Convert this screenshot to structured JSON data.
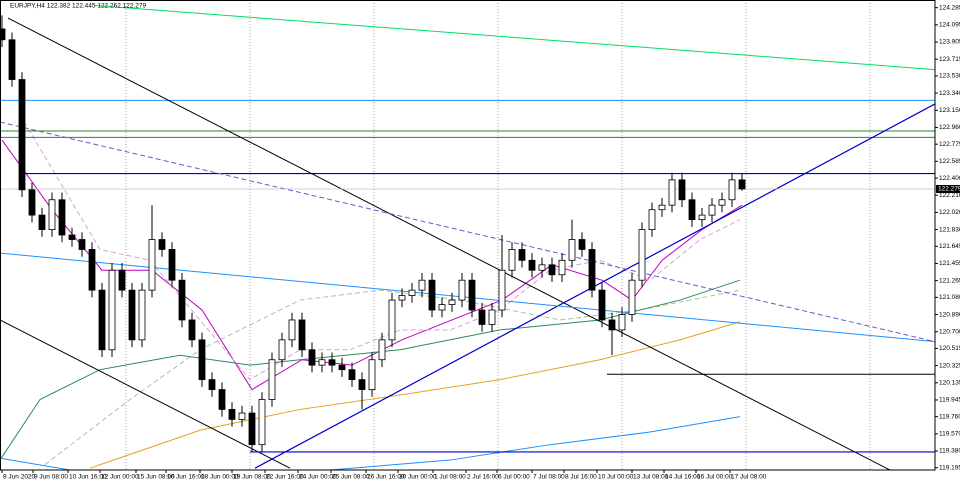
{
  "chart_data": {
    "type": "candlestick",
    "title": "EURJPY,H4 122.382 122.445 122.262 122.279",
    "xlim": [
      -0.2,
      93.3
    ],
    "ylim": [
      119.17,
      124.37
    ],
    "xticks": [
      {
        "value": 0,
        "label": "8 Jun 2020"
      },
      {
        "value": 3.1,
        "label": "9 Jun 08:00"
      },
      {
        "value": 6.6,
        "label": "10 Jun 16:00"
      },
      {
        "value": 9.8,
        "label": "12 Jun 00:00"
      },
      {
        "value": 13.4,
        "label": "15 Jun 08:00"
      },
      {
        "value": 16.4,
        "label": "16 Jun 16:00"
      },
      {
        "value": 19.8,
        "label": "18 Jun 00:00"
      },
      {
        "value": 23,
        "label": "19 Jun 08:00"
      },
      {
        "value": 26.3,
        "label": "22 Jun 16:00"
      },
      {
        "value": 29.6,
        "label": "24 Jun 00:00"
      },
      {
        "value": 32.9,
        "label": "25 Jun 08:00"
      },
      {
        "value": 36.4,
        "label": "26 Jun 16:00"
      },
      {
        "value": 39.6,
        "label": "30 Jun 00:00"
      },
      {
        "value": 43.1,
        "label": "1 Jul 08:00"
      },
      {
        "value": 46.4,
        "label": "2 Jul 16:00"
      },
      {
        "value": 49.5,
        "label": "6 Jul 00:00"
      },
      {
        "value": 53,
        "label": "7 Jul 08:00"
      },
      {
        "value": 56.2,
        "label": "8 Jul 16:00"
      },
      {
        "value": 59.5,
        "label": "10 Jul 00:00"
      },
      {
        "value": 63,
        "label": "13 Jul 08:00"
      },
      {
        "value": 66.2,
        "label": "14 Jul 16:00"
      },
      {
        "value": 69.4,
        "label": "16 Jul 00:00"
      },
      {
        "value": 72.8,
        "label": "17 Jul 08:00"
      }
    ],
    "xgrid": [
      12.4,
      24.8,
      37.2,
      49.6,
      62,
      74.4,
      86.8
    ],
    "yticks": [
      124.285,
      124.095,
      123.905,
      123.715,
      {
        "value": 123.53,
        "label": "123.530"
      },
      {
        "value": 123.34,
        "label": "123.340"
      },
      {
        "value": 123.15,
        "label": "123.150"
      },
      {
        "value": 122.96,
        "label": "122.960"
      },
      122.775,
      122.585,
      {
        "value": 122.4,
        "label": "122.400"
      },
      {
        "value": 122.21,
        "label": "122.210"
      },
      {
        "value": 122.02,
        "label": "122.020"
      },
      {
        "value": 121.83,
        "label": "121.830"
      },
      121.645,
      121.455,
      121.265,
      {
        "value": 121.08,
        "label": "121.080"
      },
      {
        "value": 120.89,
        "label": "120.890"
      },
      {
        "value": 120.7,
        "label": "120.700"
      },
      120.515,
      120.325,
      120.135,
      119.945,
      {
        "value": 119.76,
        "label": "119.760"
      },
      {
        "value": 119.57,
        "label": "119.570"
      },
      {
        "value": 119.38,
        "label": "119.380"
      },
      119.195
    ],
    "last_price": 122.279,
    "open": [
      124.05,
      123.93,
      123.49,
      122.27,
      121.99,
      121.83,
      122.16,
      121.77,
      121.72,
      121.61,
      121.16,
      120.5,
      121.38,
      121.16,
      120.61,
      121.16,
      121.72,
      121.61,
      121.27,
      120.83,
      120.61,
      120.17,
      120.06,
      119.84,
      119.73,
      119.8,
      119.45,
      119.95,
      120.39,
      120.61,
      120.83,
      120.5,
      120.33,
      120.39,
      120.33,
      120.28,
      120.17,
      120.06,
      120.39,
      120.61,
      121.05,
      121.1,
      121.16,
      121.27,
      120.94,
      121.0,
      121.05,
      121.27,
      120.94,
      120.78,
      120.94,
      121.38,
      121.61,
      121.49,
      121.38,
      121.44,
      121.33,
      121.49,
      121.72,
      121.61,
      121.16,
      120.83,
      120.72,
      120.89,
      121.27,
      121.83,
      122.05,
      122.1,
      122.38,
      122.16,
      121.94,
      121.99,
      122.1,
      122.16,
      122.38
    ],
    "high": [
      124.2,
      124.01,
      123.57,
      122.35,
      122.07,
      122.24,
      122.24,
      121.85,
      121.8,
      121.69,
      121.24,
      121.46,
      121.46,
      121.24,
      121.24,
      122.1,
      121.8,
      121.69,
      121.35,
      120.91,
      120.69,
      120.25,
      120.14,
      119.92,
      119.88,
      119.88,
      120.03,
      120.47,
      120.69,
      120.91,
      120.91,
      120.58,
      120.47,
      120.47,
      120.41,
      120.36,
      120.25,
      120.47,
      120.69,
      121.13,
      121.18,
      121.24,
      121.35,
      121.35,
      121.08,
      121.13,
      121.35,
      121.35,
      121.02,
      121.02,
      121.77,
      121.69,
      121.69,
      121.57,
      121.52,
      121.52,
      121.57,
      121.94,
      121.8,
      121.69,
      121.24,
      120.91,
      120.97,
      121.35,
      121.91,
      122.13,
      122.18,
      122.46,
      122.46,
      122.24,
      122.07,
      122.18,
      122.24,
      122.46,
      122.45
    ],
    "low": [
      123.85,
      123.41,
      122.19,
      121.91,
      121.75,
      121.75,
      121.69,
      121.64,
      121.53,
      121.08,
      120.42,
      120.42,
      121.08,
      120.53,
      120.53,
      121.08,
      121.53,
      121.19,
      120.75,
      120.53,
      120.09,
      119.98,
      119.76,
      119.65,
      119.65,
      119.37,
      119.37,
      119.87,
      120.31,
      120.53,
      120.42,
      120.25,
      120.25,
      120.25,
      120.2,
      120.09,
      119.84,
      119.98,
      120.31,
      120.53,
      120.97,
      121.02,
      121.08,
      120.86,
      120.86,
      120.92,
      120.97,
      120.86,
      120.7,
      120.7,
      120.86,
      121.3,
      121.41,
      121.3,
      121.3,
      121.25,
      121.25,
      121.41,
      121.53,
      121.08,
      120.75,
      120.44,
      120.64,
      120.81,
      121.19,
      121.75,
      121.97,
      122.02,
      122.08,
      121.86,
      121.86,
      121.91,
      122.02,
      122.08,
      122.26
    ],
    "close": [
      123.93,
      123.49,
      122.27,
      121.99,
      121.83,
      122.16,
      121.77,
      121.72,
      121.61,
      121.16,
      120.5,
      121.38,
      121.16,
      120.61,
      121.16,
      121.72,
      121.61,
      121.27,
      120.83,
      120.61,
      120.17,
      120.06,
      119.84,
      119.73,
      119.8,
      119.45,
      119.95,
      120.39,
      120.61,
      120.83,
      120.5,
      120.33,
      120.39,
      120.33,
      120.28,
      120.17,
      120.06,
      120.39,
      120.61,
      121.05,
      121.1,
      121.16,
      121.27,
      120.94,
      121.0,
      121.05,
      121.27,
      120.94,
      120.78,
      120.94,
      121.38,
      121.61,
      121.49,
      121.38,
      121.44,
      121.33,
      121.49,
      121.72,
      121.61,
      121.16,
      120.83,
      120.72,
      120.89,
      121.27,
      121.83,
      122.05,
      122.1,
      122.38,
      122.16,
      121.94,
      121.99,
      122.1,
      122.16,
      122.38,
      122.28
    ],
    "series": [
      {
        "color": "#c000c0",
        "x": [
          0,
          5,
          10,
          15,
          20,
          25,
          30,
          35,
          40,
          45,
          50,
          55,
          60,
          63,
          66,
          70,
          74
        ],
        "values": [
          122.82,
          122.05,
          121.38,
          121.38,
          120.94,
          120.06,
          120.39,
          120.33,
          120.61,
          120.83,
          121.05,
          121.44,
          121.27,
          121.05,
          121.49,
          121.83,
          122.1
        ]
      },
      {
        "color": "#d8a0d8",
        "dash": true,
        "x": [
          1.8,
          9.8,
          14.8,
          19.8,
          24.8,
          29.8,
          34.8,
          39.8,
          44.8,
          49.8,
          54.8,
          59.8,
          64.8,
          69.8,
          73.8
        ],
        "values": [
          123.1,
          121.61,
          121.49,
          120.83,
          120.17,
          120.5,
          120.5,
          120.72,
          120.72,
          120.94,
          121.38,
          121.49,
          121.27,
          121.72,
          121.94
        ]
      },
      {
        "color": "#a0c8a0",
        "dash": true,
        "x": [
          4.3,
          12.8,
          19.8,
          29.8,
          37.8,
          45.8,
          55.8,
          63.8,
          73.8
        ],
        "values": [
          119.23,
          119.95,
          120.5,
          121.05,
          121.16,
          121.05,
          120.83,
          120.94,
          121.16
        ]
      },
      {
        "color": "#2e8b57",
        "x": [
          -0.2,
          3.8,
          9.8,
          17.8,
          24.8,
          29.8,
          39.8,
          49.8,
          59.8,
          67.8,
          73.8
        ],
        "values": [
          119.28,
          119.95,
          120.28,
          120.44,
          120.33,
          120.39,
          120.5,
          120.72,
          120.83,
          121.05,
          121.27
        ]
      },
      {
        "color": "#e8a020",
        "x": [
          8.8,
          19.8,
          29.8,
          39.8,
          49.8,
          59.8,
          67.8,
          73.8
        ],
        "values": [
          119.19,
          119.61,
          119.84,
          120.0,
          120.17,
          120.39,
          120.61,
          120.81
        ]
      },
      {
        "color": "#1e90ff",
        "x": [
          32.8,
          44.8,
          54.8,
          64.8,
          73.8
        ],
        "values": [
          119.17,
          119.28,
          119.45,
          119.59,
          119.76
        ]
      }
    ],
    "lines": [
      {
        "color": "#00e060",
        "x": [
          9.3,
          93.3
        ],
        "y": [
          124.31,
          123.6
        ]
      },
      {
        "color": "#1e90ff",
        "x": [
          -0.2,
          93.3
        ],
        "y": [
          123.26,
          123.26
        ]
      },
      {
        "color": "#228b22",
        "x": [
          -0.2,
          93.3
        ],
        "y": [
          122.92,
          122.92
        ]
      },
      {
        "color": "#228b22",
        "x": [
          -0.2,
          93.3
        ],
        "y": [
          122.85,
          122.85
        ]
      },
      {
        "color": "#0000cd",
        "x": [
          2.0,
          93.3
        ],
        "y": [
          122.45,
          122.45
        ]
      },
      {
        "color": "#000000",
        "x": [
          0.6,
          88.8
        ],
        "y": [
          124.17,
          119.17
        ]
      },
      {
        "color": "#000000",
        "x": [
          -0.2,
          28.8
        ],
        "y": [
          120.83,
          119.19
        ]
      },
      {
        "color": "#000000",
        "x": [
          60.5,
          93.3
        ],
        "y": [
          120.23,
          120.23
        ]
      },
      {
        "color": "#0000cd",
        "x": [
          25.3,
          93.3
        ],
        "y": [
          119.19,
          123.22
        ]
      },
      {
        "color": "#0000cd",
        "x": [
          24.8,
          93.3
        ],
        "y": [
          119.37,
          119.37
        ]
      },
      {
        "color": "#1e90ff",
        "x": [
          -0.2,
          93.3
        ],
        "y": [
          121.57,
          120.59
        ]
      },
      {
        "color": "#6a5acd",
        "dash": true,
        "x": [
          -0.2,
          93.3
        ],
        "y": [
          123.02,
          120.59
        ]
      },
      {
        "color": "#1e90ff",
        "x": [
          -0.2,
          6.8
        ],
        "y": [
          119.3,
          119.17
        ]
      }
    ]
  }
}
